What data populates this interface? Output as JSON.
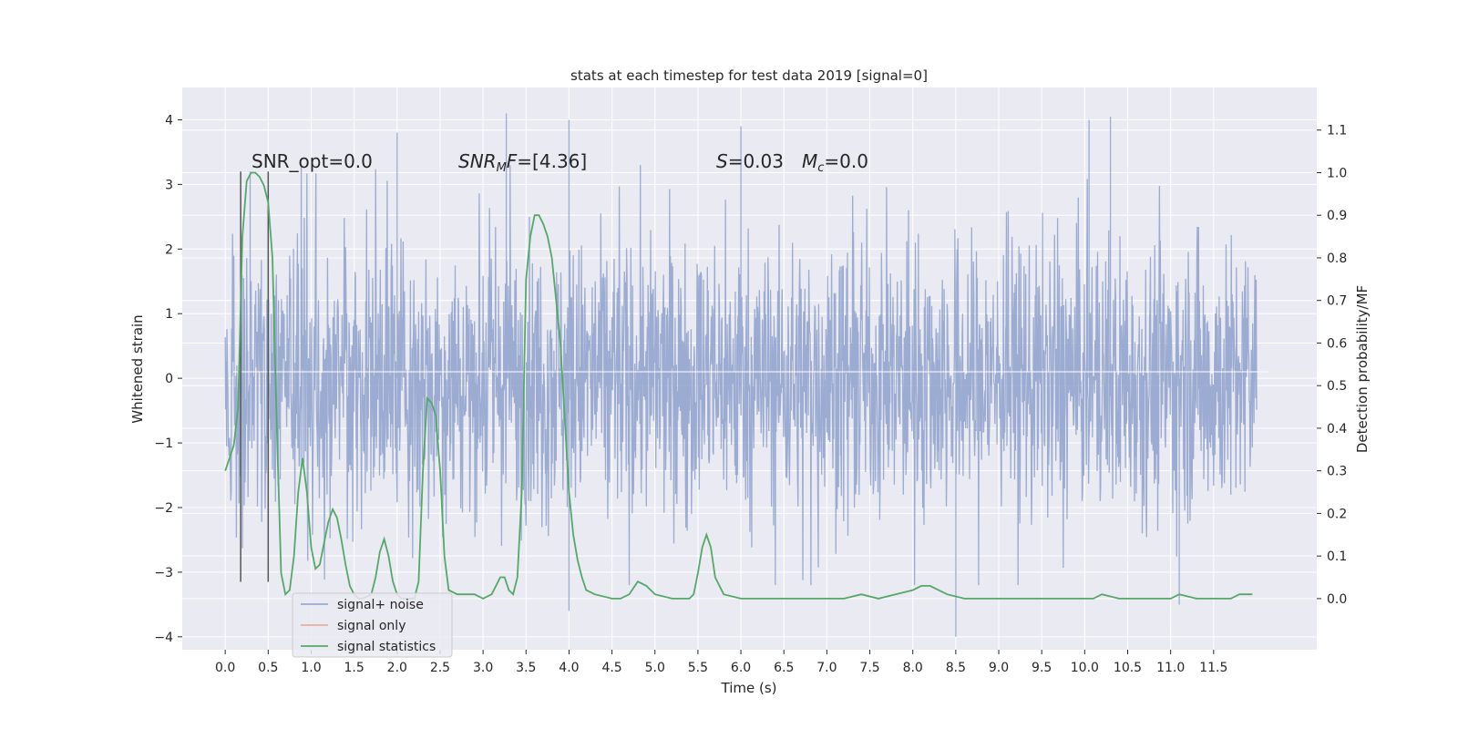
{
  "chart_data": {
    "type": "line",
    "title": "stats at each timestep for test data 2019 [signal=0]",
    "xlabel": "Time (s)",
    "ylabel": "Whitened strain",
    "y2label": "Detection probability/MF",
    "xlim": [
      -0.5,
      12.7
    ],
    "ylim": [
      -4.2,
      4.5
    ],
    "y2lim": [
      -0.12,
      1.2
    ],
    "x_ticks": [
      "0.0",
      "0.5",
      "1.0",
      "1.5",
      "2.0",
      "2.5",
      "3.0",
      "3.5",
      "4.0",
      "4.5",
      "5.0",
      "5.5",
      "6.0",
      "6.5",
      "7.0",
      "7.5",
      "8.0",
      "8.5",
      "9.0",
      "9.5",
      "10.0",
      "10.5",
      "11.0",
      "11.5"
    ],
    "y_ticks": [
      "4",
      "3",
      "2",
      "1",
      "0",
      "−1",
      "−2",
      "−3",
      "−4"
    ],
    "y2_ticks": [
      "1.1",
      "1.0",
      "0.9",
      "0.8",
      "0.7",
      "0.6",
      "0.5",
      "0.4",
      "0.3",
      "0.2",
      "0.1",
      "0.0"
    ],
    "grid": true,
    "legend_position": "lower-left",
    "annotations": {
      "snr_opt": "SNR_opt=0.0",
      "snr_mf": "=[4.36]",
      "snr_mf_symbol": "SNR",
      "snr_mf_sub": "M",
      "snr_mf_suffix": "F",
      "stat_s_symbol": "S",
      "stat_s": "=0.03",
      "mc_symbol": "M",
      "mc_sub": "c",
      "mc": "=0.0"
    },
    "vlines_x": [
      0.18,
      0.5
    ],
    "series": [
      {
        "name": "signal+ noise",
        "color": "#8da0cb",
        "axis": "left",
        "x_range": [
          0.0,
          12.0
        ],
        "typical_envelope": [
          -2.3,
          2.4
        ],
        "extremes": [
          [
            0.29,
            3.2
          ],
          [
            2.0,
            3.8
          ],
          [
            3.27,
            4.1
          ],
          [
            4.0,
            4.0
          ],
          [
            4.0,
            -3.6
          ],
          [
            6.0,
            3.9
          ],
          [
            8.5,
            -4.0
          ],
          [
            10.05,
            4.0
          ],
          [
            10.3,
            4.05
          ],
          [
            11.1,
            -3.5
          ]
        ]
      },
      {
        "name": "signal only",
        "color": "#e5a48c",
        "axis": "left",
        "values_note": ""
      },
      {
        "name": "signal statistics",
        "color": "#55a868",
        "axis": "right",
        "x": [
          0.0,
          0.1,
          0.15,
          0.2,
          0.25,
          0.3,
          0.35,
          0.4,
          0.45,
          0.5,
          0.55,
          0.6,
          0.65,
          0.7,
          0.75,
          0.8,
          0.85,
          0.9,
          0.95,
          1.0,
          1.05,
          1.1,
          1.15,
          1.2,
          1.25,
          1.3,
          1.35,
          1.4,
          1.45,
          1.5,
          1.55,
          1.6,
          1.7,
          1.75,
          1.8,
          1.85,
          1.9,
          1.95,
          2.0,
          2.05,
          2.1,
          2.2,
          2.25,
          2.3,
          2.35,
          2.4,
          2.45,
          2.5,
          2.55,
          2.6,
          2.7,
          2.9,
          3.0,
          3.1,
          3.15,
          3.2,
          3.25,
          3.3,
          3.35,
          3.4,
          3.45,
          3.5,
          3.55,
          3.6,
          3.65,
          3.7,
          3.75,
          3.8,
          3.85,
          3.9,
          4.0,
          4.05,
          4.1,
          4.15,
          4.2,
          4.3,
          4.5,
          4.6,
          4.7,
          4.8,
          4.9,
          5.0,
          5.2,
          5.4,
          5.45,
          5.5,
          5.55,
          5.6,
          5.65,
          5.7,
          5.8,
          6.0,
          6.2,
          6.4,
          6.6,
          6.8,
          7.0,
          7.2,
          7.4,
          7.6,
          7.8,
          8.0,
          8.1,
          8.2,
          8.4,
          8.6,
          9.0,
          9.5,
          10.0,
          10.1,
          10.2,
          10.4,
          10.6,
          10.8,
          11.0,
          11.1,
          11.3,
          11.5,
          11.7,
          11.8,
          11.9,
          11.95
        ],
        "values": [
          0.3,
          0.36,
          0.45,
          0.85,
          0.98,
          1.0,
          1.0,
          0.99,
          0.97,
          0.93,
          0.8,
          0.4,
          0.06,
          0.01,
          0.02,
          0.1,
          0.25,
          0.33,
          0.25,
          0.12,
          0.07,
          0.08,
          0.13,
          0.18,
          0.21,
          0.19,
          0.14,
          0.08,
          0.03,
          0.01,
          0.0,
          0.0,
          0.01,
          0.05,
          0.11,
          0.14,
          0.1,
          0.04,
          0.01,
          0.0,
          0.0,
          0.0,
          0.04,
          0.3,
          0.47,
          0.46,
          0.43,
          0.3,
          0.1,
          0.02,
          0.01,
          0.01,
          0.0,
          0.01,
          0.03,
          0.05,
          0.05,
          0.02,
          0.01,
          0.05,
          0.25,
          0.75,
          0.85,
          0.9,
          0.9,
          0.88,
          0.85,
          0.8,
          0.7,
          0.6,
          0.25,
          0.15,
          0.09,
          0.05,
          0.02,
          0.01,
          0.0,
          0.0,
          0.01,
          0.04,
          0.03,
          0.01,
          0.0,
          0.0,
          0.01,
          0.06,
          0.12,
          0.15,
          0.12,
          0.05,
          0.01,
          0.0,
          0.0,
          0.0,
          0.0,
          0.0,
          0.0,
          0.0,
          0.01,
          0.0,
          0.01,
          0.02,
          0.03,
          0.03,
          0.01,
          0.0,
          0.0,
          0.0,
          0.0,
          0.0,
          0.01,
          0.0,
          0.0,
          0.0,
          0.0,
          0.01,
          0.0,
          0.0,
          0.0,
          0.01,
          0.01,
          0.01
        ]
      }
    ]
  }
}
